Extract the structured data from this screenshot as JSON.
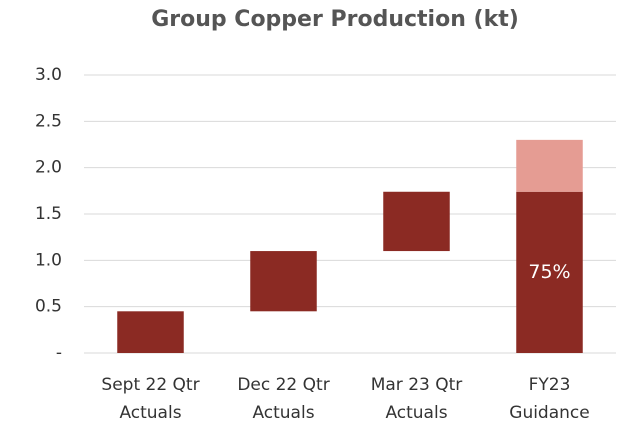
{
  "chart_data": {
    "type": "waterfall",
    "title": "Group Copper Production (kt)",
    "categories": [
      [
        "Sept 22 Qtr",
        "Actuals"
      ],
      [
        "Dec 22 Qtr",
        "Actuals"
      ],
      [
        "Mar 23 Qtr",
        "Actuals"
      ],
      [
        "FY23",
        "Guidance"
      ]
    ],
    "totals": [
      false,
      false,
      false,
      true
    ],
    "series": [
      {
        "color": "#8b2a23",
        "values": [
          0.45,
          0.65,
          0.64,
          1.74
        ]
      },
      {
        "color": "#e59c93",
        "values": [
          null,
          null,
          null,
          0.56
        ]
      }
    ],
    "annotations": [
      {
        "text": "75%",
        "category": 3
      }
    ],
    "ylim": [
      0,
      3
    ],
    "yticks": [
      {
        "value": 0,
        "label": "-"
      },
      0.5,
      {
        "value": 1,
        "label": "1.0"
      },
      1.5,
      {
        "value": 2,
        "label": "2.0"
      },
      2.5,
      {
        "value": 3,
        "label": "3.0"
      }
    ],
    "grid": true
  }
}
